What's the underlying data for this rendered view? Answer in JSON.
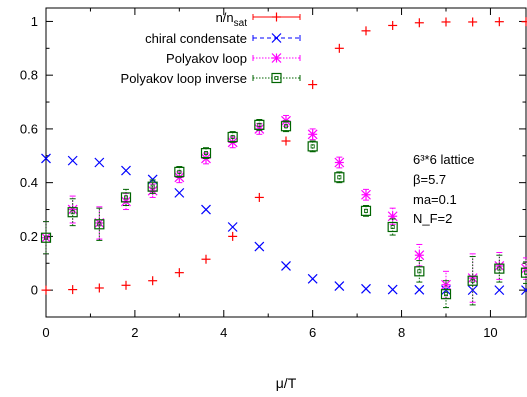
{
  "chart_data": {
    "type": "scatter",
    "xlabel": "μ/T",
    "ylabel": "",
    "xlim": [
      0,
      10.8
    ],
    "ylim": [
      -0.1,
      1.05
    ],
    "xticks": [
      "0",
      "2",
      "4",
      "6",
      "8",
      "10"
    ],
    "yticks": [
      "0",
      "0.2",
      "0.4",
      "0.6",
      "0.8",
      "1"
    ],
    "grid": false,
    "legend_position": "top-left",
    "annotation": {
      "line1": "6³*6 lattice",
      "line2": "β=5.7",
      "line3": "ma=0.1",
      "line4": "N_F=2"
    },
    "series": [
      {
        "name": "n/n_sat",
        "legend_main": "n/n",
        "legend_sub": "sat",
        "marker": "plus",
        "color": "#ff0000",
        "x": [
          0,
          0.6,
          1.2,
          1.8,
          2.4,
          3.0,
          3.6,
          4.2,
          4.8,
          5.4,
          6.0,
          6.6,
          7.2,
          7.8,
          8.4,
          9.0,
          9.6,
          10.2,
          10.8
        ],
        "y": [
          0.0,
          0.002,
          0.008,
          0.018,
          0.035,
          0.065,
          0.115,
          0.2,
          0.345,
          0.555,
          0.765,
          0.9,
          0.965,
          0.985,
          0.995,
          0.998,
          0.998,
          0.999,
          0.999
        ]
      },
      {
        "name": "chiral condensate",
        "marker": "x",
        "color": "#0000ff",
        "x": [
          0,
          0.6,
          1.2,
          1.8,
          2.4,
          3.0,
          3.6,
          4.2,
          4.8,
          5.4,
          6.0,
          6.6,
          7.2,
          7.8,
          8.4,
          9.0,
          9.6,
          10.2,
          10.8
        ],
        "y": [
          0.49,
          0.482,
          0.475,
          0.445,
          0.412,
          0.362,
          0.3,
          0.235,
          0.162,
          0.09,
          0.042,
          0.015,
          0.005,
          0.002,
          0.001,
          0.0,
          0.0,
          0.0,
          0.0
        ]
      },
      {
        "name": "Polyakov loop",
        "marker": "star",
        "color": "#ff00ff",
        "x": [
          0,
          0.6,
          1.2,
          1.8,
          2.4,
          3.0,
          3.6,
          4.2,
          4.8,
          5.4,
          6.0,
          6.6,
          7.2,
          7.8,
          8.4,
          9.0,
          9.6,
          10.2,
          10.8
        ],
        "y": [
          0.195,
          0.3,
          0.25,
          0.33,
          0.37,
          0.42,
          0.49,
          0.55,
          0.6,
          0.63,
          0.58,
          0.475,
          0.355,
          0.275,
          0.13,
          0.02,
          0.045,
          0.09,
          0.08
        ],
        "err": [
          0.06,
          0.05,
          0.06,
          0.03,
          0.025,
          0.02,
          0.02,
          0.02,
          0.02,
          0.02,
          0.02,
          0.02,
          0.02,
          0.03,
          0.04,
          0.05,
          0.09,
          0.05,
          0.04
        ]
      },
      {
        "name": "Polyakov loop inverse",
        "marker": "square",
        "color": "#006400",
        "x": [
          0,
          0.6,
          1.2,
          1.8,
          2.4,
          3.0,
          3.6,
          4.2,
          4.8,
          5.4,
          6.0,
          6.6,
          7.2,
          7.8,
          8.4,
          9.0,
          9.6,
          10.2,
          10.8
        ],
        "y": [
          0.195,
          0.29,
          0.245,
          0.345,
          0.385,
          0.44,
          0.51,
          0.57,
          0.615,
          0.61,
          0.535,
          0.42,
          0.295,
          0.235,
          0.07,
          -0.015,
          0.035,
          0.08,
          0.065
        ],
        "err": [
          0.06,
          0.05,
          0.06,
          0.03,
          0.025,
          0.02,
          0.02,
          0.02,
          0.02,
          0.02,
          0.02,
          0.02,
          0.02,
          0.03,
          0.04,
          0.05,
          0.09,
          0.05,
          0.04
        ]
      }
    ]
  }
}
